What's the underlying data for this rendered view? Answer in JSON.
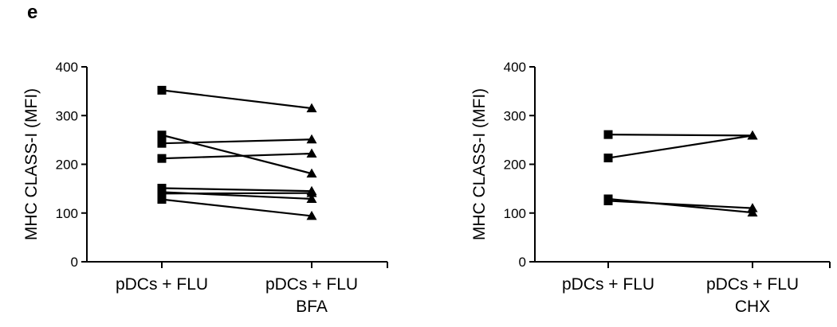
{
  "panel_label": "e",
  "chart_data": [
    {
      "type": "line",
      "ylabel": "MHC CLASS-I (MFI)",
      "xlabel": "",
      "ylim": [
        0,
        400
      ],
      "yticks": [
        0,
        100,
        200,
        300,
        400
      ],
      "categories": [
        "pDCs + FLU",
        "pDCs + FLU\nBFA"
      ],
      "markers": [
        "square",
        "triangle"
      ],
      "grid": false,
      "series": [
        {
          "values": [
            352,
            315
          ]
        },
        {
          "values": [
            260,
            181
          ]
        },
        {
          "values": [
            243,
            251
          ]
        },
        {
          "values": [
            212,
            222
          ]
        },
        {
          "values": [
            151,
            145
          ]
        },
        {
          "values": [
            140,
            141
          ]
        },
        {
          "values": [
            128,
            94
          ]
        },
        {
          "values": [
            143,
            129
          ]
        }
      ]
    },
    {
      "type": "line",
      "ylabel": "MHC CLASS-I (MFI)",
      "xlabel": "",
      "ylim": [
        0,
        400
      ],
      "yticks": [
        0,
        100,
        200,
        300,
        400
      ],
      "categories": [
        "pDCs + FLU",
        "pDCs + FLU\nCHX"
      ],
      "markers": [
        "square",
        "triangle"
      ],
      "grid": false,
      "series": [
        {
          "values": [
            261,
            259
          ]
        },
        {
          "values": [
            213,
            259
          ]
        },
        {
          "values": [
            129,
            101
          ]
        },
        {
          "values": [
            125,
            110
          ]
        }
      ]
    }
  ]
}
